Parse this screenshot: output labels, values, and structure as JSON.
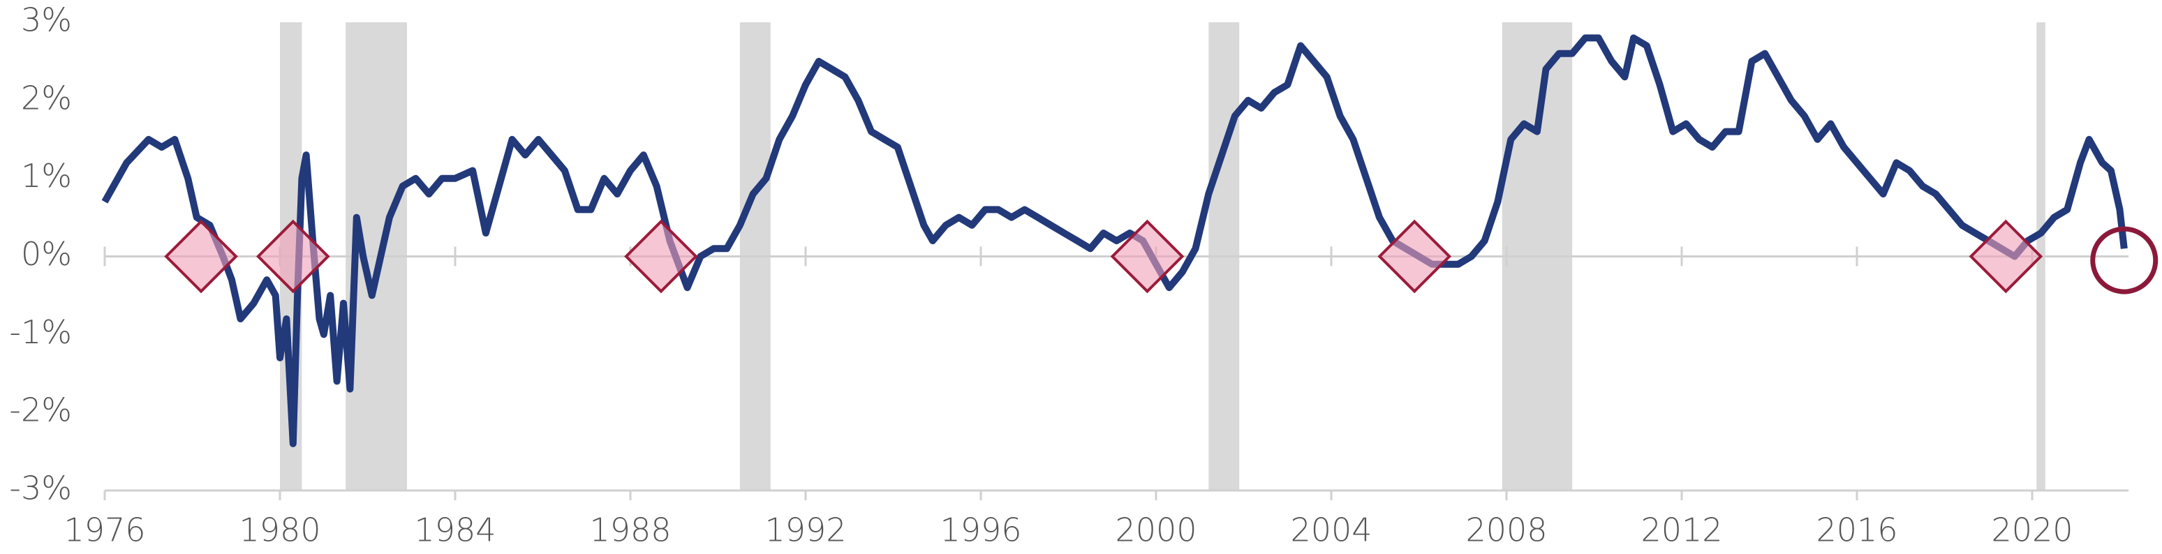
{
  "chart_data": {
    "type": "line",
    "xlim": [
      1976,
      2022.2
    ],
    "ylim": [
      -3,
      3
    ],
    "xticks": [
      1976,
      1980,
      1984,
      1988,
      1992,
      1996,
      2000,
      2004,
      2008,
      2012,
      2016,
      2020
    ],
    "yticks": [
      {
        "value": -3,
        "label": "-3%"
      },
      {
        "value": -2,
        "label": "-2%"
      },
      {
        "value": -1,
        "label": "-1%"
      },
      {
        "value": 0,
        "label": "0%"
      },
      {
        "value": 1,
        "label": "1%"
      },
      {
        "value": 2,
        "label": "2%"
      },
      {
        "value": 3,
        "label": "3%"
      }
    ],
    "recessions": [
      [
        1980.0,
        1980.5
      ],
      [
        1981.5,
        1982.9
      ],
      [
        1990.5,
        1991.2
      ],
      [
        2001.2,
        2001.9
      ],
      [
        2007.9,
        2009.5
      ],
      [
        2020.1,
        2020.3
      ]
    ],
    "recession_color": "#d9d9d9",
    "inversion_markers": {
      "x": [
        1978.2,
        1980.3,
        1988.7,
        1999.8,
        2005.9,
        2019.4
      ],
      "y": [
        0,
        0,
        0,
        0,
        0,
        0
      ],
      "color": "#9b1b3a"
    },
    "highlight": {
      "x": 2022.1,
      "y": -0.05,
      "color": "#8b1a3a"
    },
    "series": [
      {
        "color": "#22397a",
        "x": [
          1976.0,
          1976.5,
          1977.0,
          1977.3,
          1977.6,
          1977.9,
          1978.1,
          1978.4,
          1978.7,
          1978.9,
          1979.1,
          1979.4,
          1979.7,
          1979.9,
          1980.0,
          1980.15,
          1980.3,
          1980.4,
          1980.5,
          1980.6,
          1980.75,
          1980.9,
          1981.0,
          1981.15,
          1981.3,
          1981.45,
          1981.6,
          1981.75,
          1981.9,
          1982.1,
          1982.3,
          1982.5,
          1982.8,
          1983.1,
          1983.4,
          1983.7,
          1984.0,
          1984.4,
          1984.7,
          1985.0,
          1985.3,
          1985.6,
          1985.9,
          1986.2,
          1986.5,
          1986.8,
          1987.1,
          1987.4,
          1987.7,
          1988.0,
          1988.3,
          1988.6,
          1988.9,
          1989.1,
          1989.3,
          1989.6,
          1989.9,
          1990.2,
          1990.5,
          1990.8,
          1991.1,
          1991.4,
          1991.7,
          1992.0,
          1992.3,
          1992.6,
          1992.9,
          1993.2,
          1993.5,
          1993.8,
          1994.1,
          1994.4,
          1994.7,
          1994.9,
          1995.2,
          1995.5,
          1995.8,
          1996.1,
          1996.4,
          1996.7,
          1997.0,
          1997.3,
          1997.6,
          1997.9,
          1998.2,
          1998.5,
          1998.8,
          1999.1,
          1999.4,
          1999.7,
          2000.0,
          2000.3,
          2000.6,
          2000.9,
          2001.2,
          2001.5,
          2001.8,
          2002.1,
          2002.4,
          2002.7,
          2003.0,
          2003.3,
          2003.6,
          2003.9,
          2004.2,
          2004.5,
          2004.8,
          2005.1,
          2005.4,
          2005.7,
          2006.0,
          2006.3,
          2006.6,
          2006.9,
          2007.2,
          2007.5,
          2007.8,
          2008.1,
          2008.4,
          2008.7,
          2008.9,
          2009.2,
          2009.5,
          2009.8,
          2010.1,
          2010.4,
          2010.7,
          2010.9,
          2011.2,
          2011.5,
          2011.8,
          2012.1,
          2012.4,
          2012.7,
          2013.0,
          2013.3,
          2013.6,
          2013.9,
          2014.2,
          2014.5,
          2014.8,
          2015.1,
          2015.4,
          2015.7,
          2016.0,
          2016.3,
          2016.6,
          2016.9,
          2017.2,
          2017.5,
          2017.8,
          2018.1,
          2018.4,
          2018.7,
          2019.0,
          2019.3,
          2019.6,
          2019.9,
          2020.2,
          2020.5,
          2020.8,
          2021.1,
          2021.3,
          2021.6,
          2021.8,
          2022.0,
          2022.1
        ],
        "values": [
          0.7,
          1.2,
          1.5,
          1.4,
          1.5,
          1.0,
          0.5,
          0.4,
          0.0,
          -0.3,
          -0.8,
          -0.6,
          -0.3,
          -0.5,
          -1.3,
          -0.8,
          -2.4,
          -0.5,
          1.0,
          1.3,
          0.2,
          -0.8,
          -1.0,
          -0.5,
          -1.6,
          -0.6,
          -1.7,
          0.5,
          0.0,
          -0.5,
          0.0,
          0.5,
          0.9,
          1.0,
          0.8,
          1.0,
          1.0,
          1.1,
          0.3,
          0.9,
          1.5,
          1.3,
          1.5,
          1.3,
          1.1,
          0.6,
          0.6,
          1.0,
          0.8,
          1.1,
          1.3,
          0.9,
          0.2,
          -0.1,
          -0.4,
          0.0,
          0.1,
          0.1,
          0.4,
          0.8,
          1.0,
          1.5,
          1.8,
          2.2,
          2.5,
          2.4,
          2.3,
          2.0,
          1.6,
          1.5,
          1.4,
          0.9,
          0.4,
          0.2,
          0.4,
          0.5,
          0.4,
          0.6,
          0.6,
          0.5,
          0.6,
          0.5,
          0.4,
          0.3,
          0.2,
          0.1,
          0.3,
          0.2,
          0.3,
          0.2,
          -0.1,
          -0.4,
          -0.2,
          0.1,
          0.8,
          1.3,
          1.8,
          2.0,
          1.9,
          2.1,
          2.2,
          2.7,
          2.5,
          2.3,
          1.8,
          1.5,
          1.0,
          0.5,
          0.2,
          0.1,
          0.0,
          -0.1,
          -0.1,
          -0.1,
          0.0,
          0.2,
          0.7,
          1.5,
          1.7,
          1.6,
          2.4,
          2.6,
          2.6,
          2.8,
          2.8,
          2.5,
          2.3,
          2.8,
          2.7,
          2.2,
          1.6,
          1.7,
          1.5,
          1.4,
          1.6,
          1.6,
          2.5,
          2.6,
          2.3,
          2.0,
          1.8,
          1.5,
          1.7,
          1.4,
          1.2,
          1.0,
          0.8,
          1.2,
          1.1,
          0.9,
          0.8,
          0.6,
          0.4,
          0.3,
          0.2,
          0.1,
          0.0,
          0.2,
          0.3,
          0.5,
          0.6,
          1.2,
          1.5,
          1.2,
          1.1,
          0.6,
          0.1
        ]
      }
    ]
  }
}
